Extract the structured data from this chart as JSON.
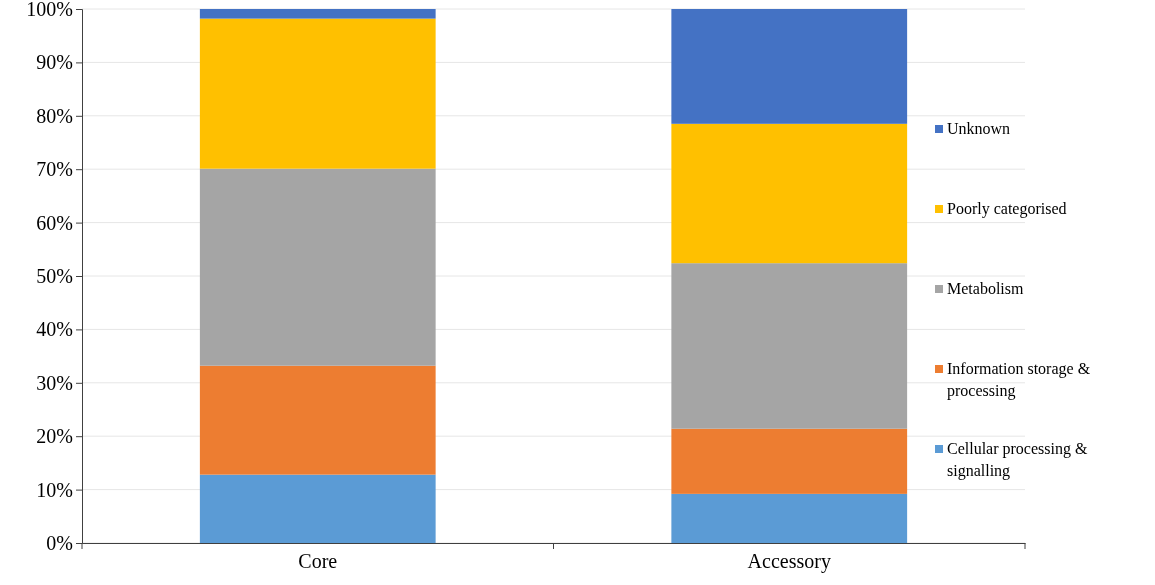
{
  "chart_data": {
    "type": "bar",
    "stacked": true,
    "categories": [
      "Core",
      "Accessory"
    ],
    "series": [
      {
        "name": "Cellular processing & signalling",
        "color": "#5b9bd5",
        "values": [
          12.8,
          9.2
        ]
      },
      {
        "name": "Information storage & processing",
        "color": "#ed7d31",
        "values": [
          20.4,
          12.2
        ]
      },
      {
        "name": "Metabolism",
        "color": "#a5a5a5",
        "values": [
          36.9,
          31.0
        ]
      },
      {
        "name": "Poorly categorised",
        "color": "#ffc000",
        "values": [
          28.1,
          26.1
        ]
      },
      {
        "name": "Unknown",
        "color": "#4472c4",
        "values": [
          1.8,
          21.5
        ]
      }
    ],
    "ylim": [
      0,
      100
    ],
    "yticks": [
      {
        "value": 0,
        "label": "0%"
      },
      {
        "value": 10,
        "label": "10%"
      },
      {
        "value": 20,
        "label": "20%"
      },
      {
        "value": 30,
        "label": "30%"
      },
      {
        "value": 40,
        "label": "40%"
      },
      {
        "value": 50,
        "label": "50%"
      },
      {
        "value": 60,
        "label": "60%"
      },
      {
        "value": 70,
        "label": "70%"
      },
      {
        "value": 80,
        "label": "80%"
      },
      {
        "value": 90,
        "label": "90%"
      },
      {
        "value": 100,
        "label": "100%"
      }
    ],
    "grid": "y",
    "legend": "right"
  }
}
